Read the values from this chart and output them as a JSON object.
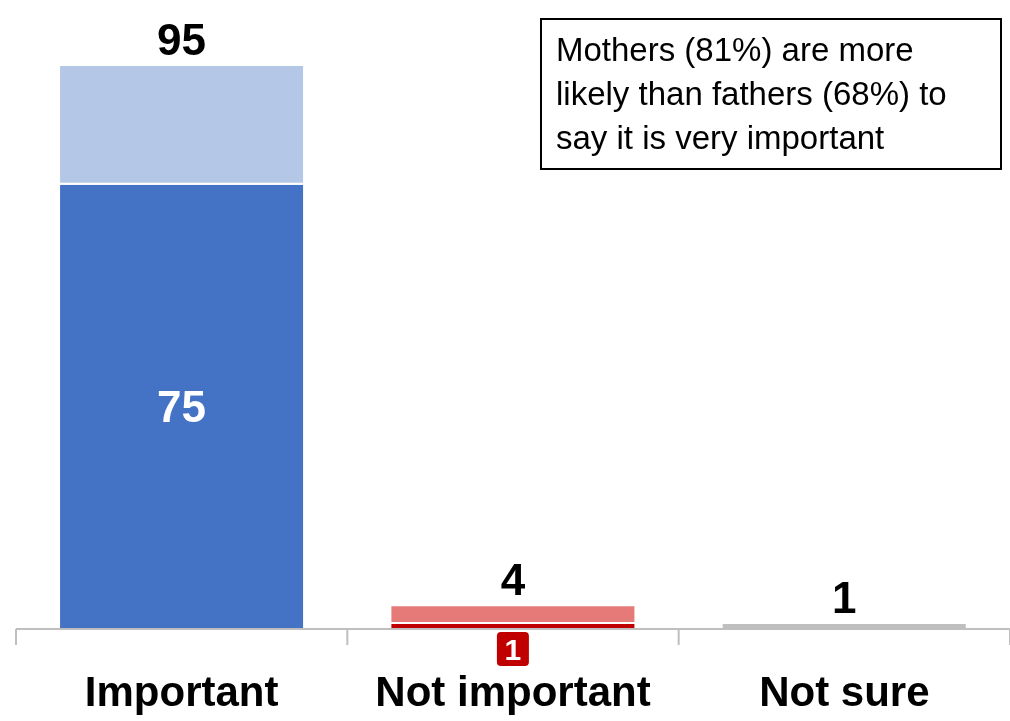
{
  "chart_data": {
    "type": "bar",
    "categories": [
      "Important",
      "Not important",
      "Not sure"
    ],
    "stacked": true,
    "series": [
      {
        "colors": [
          "#4472c4",
          "#c00000",
          "#bfbfbf"
        ],
        "values": [
          75,
          1,
          1
        ],
        "value_labels": [
          "75",
          "1",
          null
        ]
      },
      {
        "colors": [
          "#b4c7e7",
          "#e57a79",
          null
        ],
        "values": [
          20,
          3,
          null
        ]
      }
    ],
    "totals": [
      "95",
      "4",
      "1"
    ],
    "tick_labels": "x",
    "annotations": [
      "Mothers (81%) are more likely than fathers (68%) to say it is very important"
    ]
  }
}
